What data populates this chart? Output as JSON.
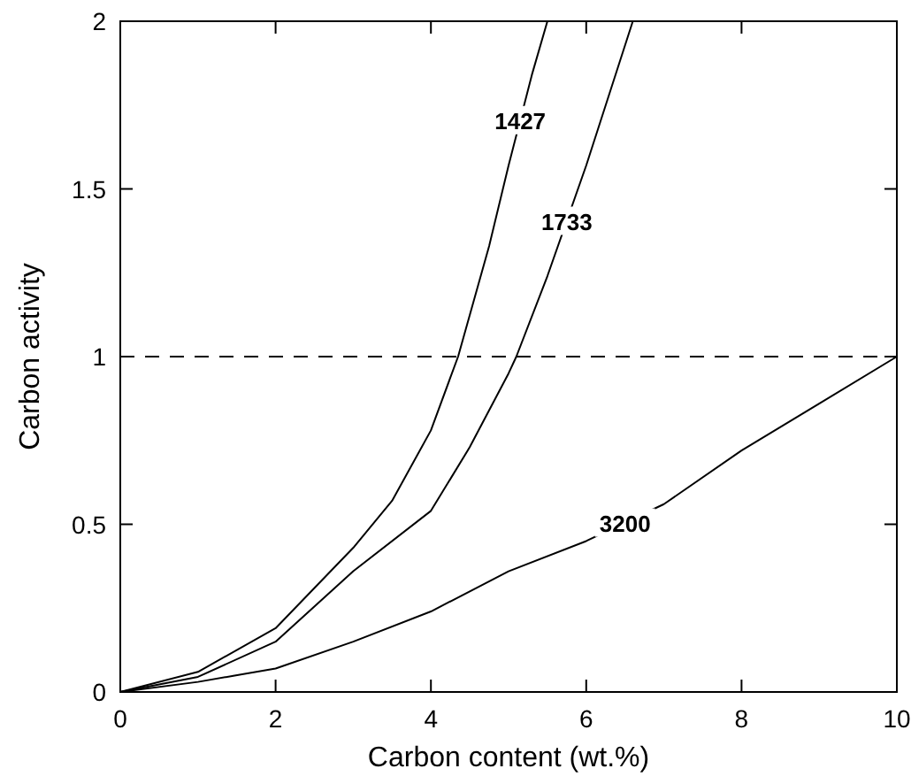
{
  "chart_data": {
    "type": "line",
    "xlabel": "Carbon content (wt.%)",
    "ylabel": "Carbon activity",
    "xlim": [
      0,
      10
    ],
    "ylim": [
      0,
      2
    ],
    "xticks": [
      0,
      2,
      4,
      6,
      8,
      10
    ],
    "yticks": [
      0,
      0.5,
      1,
      1.5,
      2
    ],
    "line_style": "solid",
    "marker": "none",
    "series": [
      {
        "name": "1427",
        "color": "#000000",
        "x": [
          0,
          1,
          2,
          3,
          3.5,
          4,
          4.35,
          4.75,
          5,
          5.3,
          5.5
        ],
        "values": [
          0,
          0.06,
          0.19,
          0.43,
          0.57,
          0.78,
          1.0,
          1.33,
          1.57,
          1.84,
          2.0
        ]
      },
      {
        "name": "1733",
        "color": "#000000",
        "x": [
          0,
          1,
          2,
          3,
          4,
          4.5,
          5,
          5.1,
          5.5,
          6,
          6.6
        ],
        "values": [
          0,
          0.045,
          0.15,
          0.36,
          0.54,
          0.73,
          0.95,
          1.0,
          1.24,
          1.57,
          2.0
        ]
      },
      {
        "name": "3200",
        "color": "#000000",
        "x": [
          0,
          1,
          2,
          3,
          4,
          5,
          6,
          7,
          8,
          9,
          10
        ],
        "values": [
          0,
          0.03,
          0.07,
          0.15,
          0.24,
          0.36,
          0.45,
          0.56,
          0.72,
          0.86,
          1.0
        ]
      }
    ],
    "ref_lines": [
      {
        "axis": "y",
        "value": 1,
        "line_style": "dashed",
        "color": "#000000"
      }
    ]
  }
}
